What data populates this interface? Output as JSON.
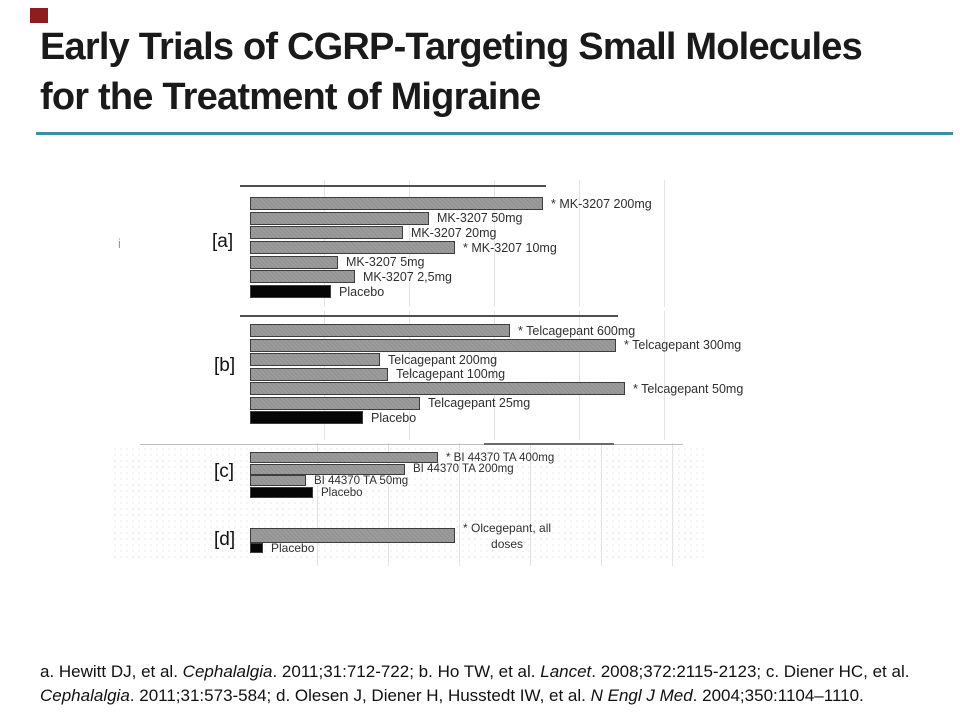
{
  "slide": {
    "title_line1": "Early Trials of CGRP-Targeting Small Molecules",
    "title_line2": "for the Treatment of Migraine",
    "accent_square_color": "#8E1D22",
    "rule_color": "#3A8FA3"
  },
  "artifact_mark": "i",
  "chart_data": {
    "type": "bar",
    "orientation": "horizontal",
    "note": "Four stacked horizontal bar charts (no numeric axis shown in image); values are relative bar lengths in screen px from a common baseline. * denotes labels starred in the figure.",
    "colors": {
      "active_bar": "#9B9B9B",
      "placebo_bar": "#000000"
    },
    "legend_position": "none",
    "grid": "faint vertical gridlines",
    "groups": [
      {
        "tag": "[a]",
        "drug": "MK-3207",
        "bars": [
          {
            "label": "* MK-3207 200mg",
            "length": 293,
            "type": "active"
          },
          {
            "label": "MK-3207 50mg",
            "length": 179,
            "type": "active"
          },
          {
            "label": "MK-3207 20mg",
            "length": 153,
            "type": "active"
          },
          {
            "label": "* MK-3207 10mg",
            "length": 205,
            "type": "active"
          },
          {
            "label": "MK-3207 5mg",
            "length": 88,
            "type": "active"
          },
          {
            "label": "MK-3207 2,5mg",
            "length": 105,
            "type": "active"
          },
          {
            "label": "Placebo",
            "length": 81,
            "type": "placebo"
          }
        ]
      },
      {
        "tag": "[b]",
        "drug": "Telcagepant",
        "bars": [
          {
            "label": "* Telcagepant 600mg",
            "length": 260,
            "type": "active"
          },
          {
            "label": "* Telcagepant 300mg",
            "length": 366,
            "type": "active"
          },
          {
            "label": "Telcagepant 200mg",
            "length": 130,
            "type": "active"
          },
          {
            "label": "Telcagepant 100mg",
            "length": 138,
            "type": "active"
          },
          {
            "label": "* Telcagepant 50mg",
            "length": 375,
            "type": "active"
          },
          {
            "label": "Telcagepant 25mg",
            "length": 170,
            "type": "active"
          },
          {
            "label": "Placebo",
            "length": 113,
            "type": "placebo"
          }
        ]
      },
      {
        "tag": "[c]",
        "drug": "BI 44370 TA",
        "bars": [
          {
            "label": "* BI 44370 TA 400mg",
            "length": 188,
            "type": "active"
          },
          {
            "label": "BI 44370 TA 200mg",
            "length": 155,
            "type": "active"
          },
          {
            "label": "BI 44370 TA 50mg",
            "length": 56,
            "type": "active"
          },
          {
            "label": "Placebo",
            "length": 63,
            "type": "placebo"
          }
        ]
      },
      {
        "tag": "[d]",
        "drug": "Olcegepant",
        "bars": [
          {
            "label": "* Olcegepant, all\ndoses",
            "length": 205,
            "type": "active"
          },
          {
            "label": "Placebo",
            "length": 13,
            "type": "placebo"
          }
        ]
      }
    ]
  },
  "footer": {
    "line1": [
      {
        "text": "a. Hewitt DJ, et al. ",
        "italic": false
      },
      {
        "text": "Cephalalgia",
        "italic": true
      },
      {
        "text": ". 2011;31:712-722; b. Ho TW, et al. ",
        "italic": false
      },
      {
        "text": "Lancet",
        "italic": true
      },
      {
        "text": ". 2008;372:2115-2123; c. Diener HC, et al.",
        "italic": false
      }
    ],
    "line2": [
      {
        "text": "Cephalalgia",
        "italic": true
      },
      {
        "text": ". 2011;31:573-584; d. Olesen J, Diener H, Husstedt IW, et al. ",
        "italic": false
      },
      {
        "text": "N Engl J Med",
        "italic": true
      },
      {
        "text": ". 2004;350:1104–1110.",
        "italic": false
      }
    ]
  }
}
